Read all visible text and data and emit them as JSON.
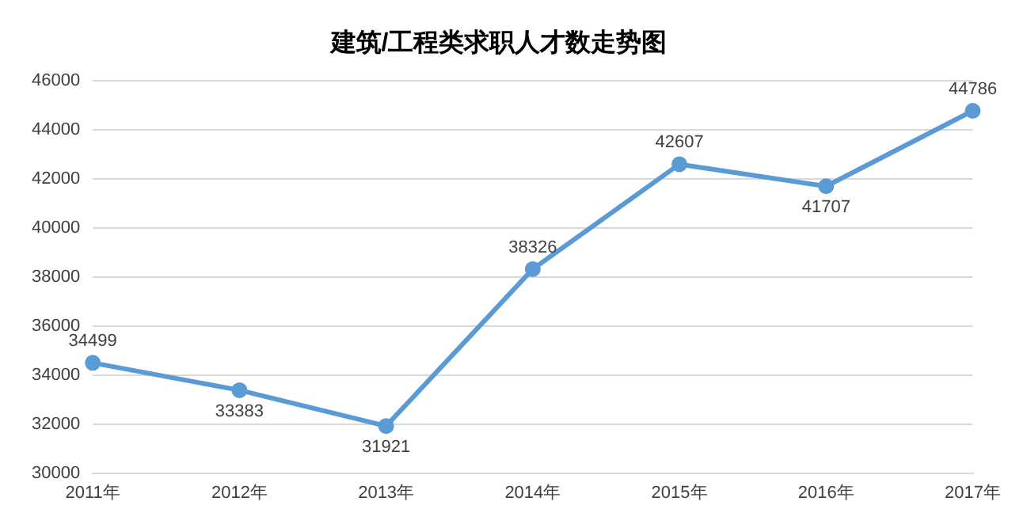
{
  "chart_data": {
    "type": "line",
    "title": "建筑/工程类求职人才数走势图",
    "categories": [
      "2011年",
      "2012年",
      "2013年",
      "2014年",
      "2015年",
      "2016年",
      "2017年"
    ],
    "series": [
      {
        "color": "#5b9bd5",
        "values": [
          34499,
          33383,
          31921,
          38326,
          42607,
          41707,
          44786
        ]
      }
    ],
    "ylim": [
      30000,
      46000
    ],
    "yticks": [
      30000,
      32000,
      34000,
      36000,
      38000,
      40000,
      42000,
      44000,
      46000
    ],
    "grid": "y",
    "legend": false,
    "marker": "circle",
    "line_style": "solid",
    "data_labels": true
  }
}
